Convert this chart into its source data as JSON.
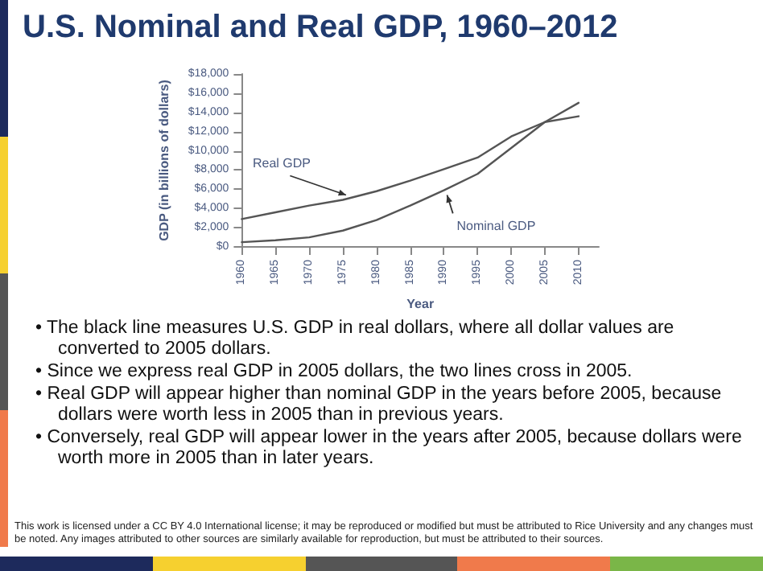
{
  "chart_data": {
    "type": "line",
    "title": "U.S. Nominal and Real GDP, 1960–2012",
    "xlabel": "Year",
    "ylabel": "GDP (in billions of dollars)",
    "x": [
      1960,
      1965,
      1970,
      1975,
      1980,
      1985,
      1990,
      1995,
      2000,
      2005,
      2010
    ],
    "series": [
      {
        "name": "Real GDP",
        "color": "#555555",
        "values": [
          2900,
          3600,
          4300,
          4900,
          5800,
          6900,
          8100,
          9300,
          11500,
          13000,
          13600
        ]
      },
      {
        "name": "Nominal GDP",
        "color": "#555555",
        "values": [
          500,
          700,
          1000,
          1700,
          2800,
          4300,
          5900,
          7600,
          10300,
          13000,
          15000
        ]
      }
    ],
    "xlim": [
      1960,
      2013
    ],
    "xticks": [
      1960,
      1965,
      1970,
      1975,
      1980,
      1985,
      1990,
      1995,
      2000,
      2005,
      2010
    ],
    "ylim": [
      0,
      18000
    ],
    "yticks": [
      {
        "value": 0,
        "label": "$0"
      },
      {
        "value": 2000,
        "label": "$2,000"
      },
      {
        "value": 4000,
        "label": "$4,000"
      },
      {
        "value": 6000,
        "label": "$6,000"
      },
      {
        "value": 8000,
        "label": "$8,000"
      },
      {
        "value": 10000,
        "label": "$10,000"
      },
      {
        "value": 12000,
        "label": "$12,000"
      },
      {
        "value": 14000,
        "label": "$14,000"
      },
      {
        "value": 16000,
        "label": "$16,000"
      },
      {
        "value": 18000,
        "label": "$18,000"
      }
    ],
    "grid": false,
    "legend": false,
    "marker": "none",
    "line_style": "solid",
    "annotations": [
      "• The black line measures U.S. GDP in real dollars, where all dollar values are converted to 2005 dollars.",
      "• Since we express real GDP in 2005 dollars, the two lines cross in 2005.",
      "• Real GDP will appear higher than nominal GDP in the years before 2005, because dollars were worth less in 2005 than in previous years.",
      "• Conversely, real GDP will appear lower in the years after 2005, because dollars were worth more in 2005 than in later years.",
      "This work is licensed under a CC BY 4.0 International license; it may be reproduced or modified but must be attributed to Rice University and any changes must be noted.  Any images attributed to other sources are similarly available for reproduction, but must be attributed to their sources."
    ]
  }
}
